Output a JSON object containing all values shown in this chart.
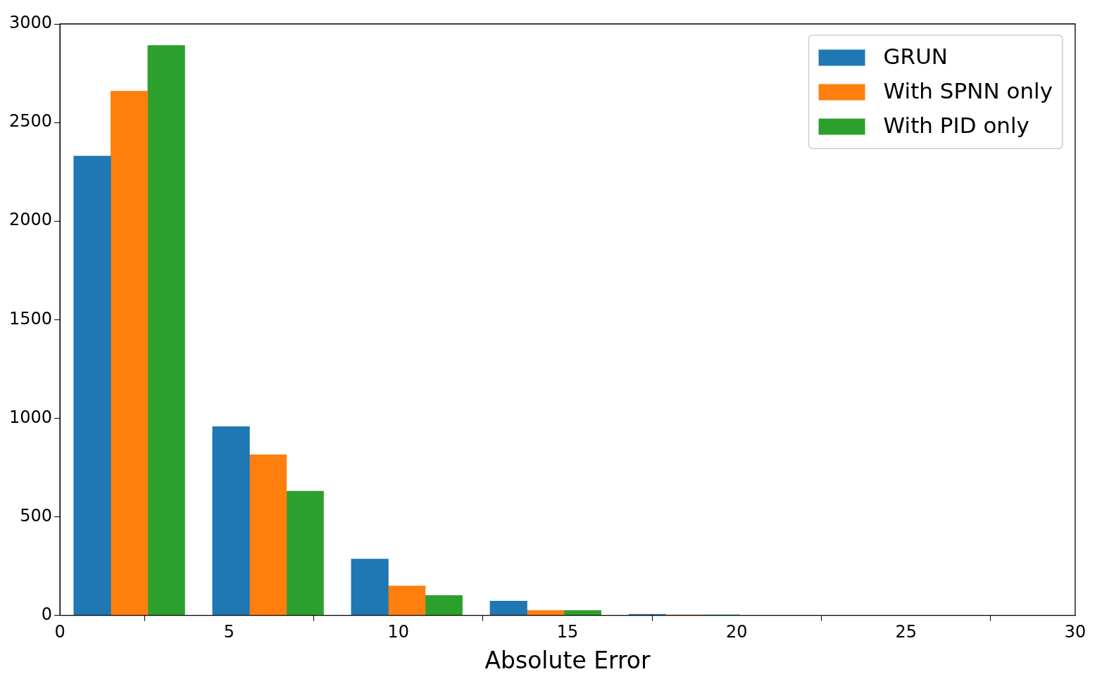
{
  "chart_data": {
    "type": "histogram",
    "xlabel": "Absolute Error",
    "bins": [
      0,
      4.1,
      8.2,
      12.3,
      16.4,
      20.5
    ],
    "series": [
      {
        "name": "GRUN",
        "color": "#1f77b4",
        "values": [
          2330,
          957,
          286,
          72,
          5
        ]
      },
      {
        "name": "With SPNN only",
        "color": "#ff7f0e",
        "values": [
          2659,
          815,
          149,
          25,
          3
        ]
      },
      {
        "name": "With PID only",
        "color": "#2ca02c",
        "values": [
          2891,
          630,
          101,
          25,
          3
        ]
      }
    ],
    "xlim": [
      0,
      30
    ],
    "xticks": [
      0,
      5,
      10,
      15,
      20,
      25,
      30
    ],
    "ylim": [
      0,
      3000
    ],
    "yticks": [
      0,
      500,
      1000,
      1500,
      2000,
      2500,
      3000
    ],
    "grid": false,
    "legend": "top right"
  }
}
